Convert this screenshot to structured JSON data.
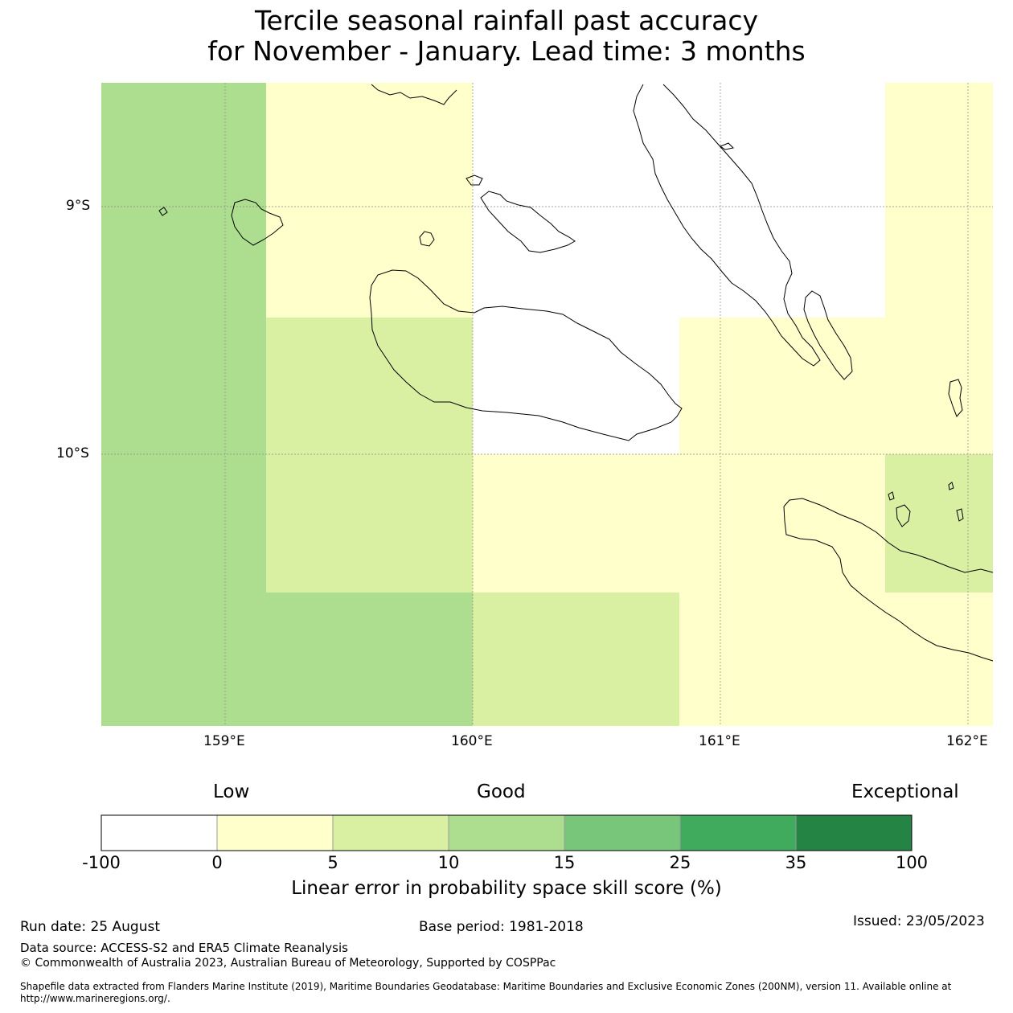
{
  "title": {
    "line1": "Tercile seasonal rainfall past accuracy",
    "line2": "for November - January. Lead time: 3 months"
  },
  "map": {
    "lat_labels": [
      "9°S",
      "10°S"
    ],
    "lon_labels": [
      "159°E",
      "160°E",
      "161°E",
      "162°E"
    ],
    "category_colors": {
      "neg_0": "#ffffff",
      "0_5": "#ffffcc",
      "5_10": "#d9f0a3",
      "10_15": "#addd8e",
      "15_25": "#78c679",
      "25_35": "#41ab5d",
      "35_100": "#238443"
    },
    "cells": [
      [
        "10_15",
        "0_5",
        "neg_0",
        "neg_0",
        "0_5"
      ],
      [
        "10_15",
        "5_10",
        "neg_0",
        "0_5",
        "0_5"
      ],
      [
        "10_15",
        "5_10",
        "0_5",
        "0_5",
        "5_10"
      ],
      [
        "10_15",
        "10_15",
        "5_10",
        "0_5",
        "0_5"
      ]
    ]
  },
  "colorbar": {
    "words": {
      "low": "Low",
      "good": "Good",
      "exceptional": "Exceptional"
    },
    "ticks": [
      "-100",
      "0",
      "5",
      "10",
      "15",
      "25",
      "35",
      "100"
    ],
    "colors": [
      "#ffffff",
      "#ffffcc",
      "#d9f0a3",
      "#addd8e",
      "#78c679",
      "#41ab5d",
      "#238443"
    ],
    "label": "Linear error in probability space skill score (%)"
  },
  "footer": {
    "run_date": "Run date: 25 August",
    "base_period": "Base period: 1981-2018",
    "issued": "Issued: 23/05/2023",
    "data_source": "Data source: ACCESS-S2 and ERA5 Climate Reanalysis",
    "copyright": "© Commonwealth of Australia 2023, Australian Bureau of Meteorology, Supported by COSPPac",
    "shapefile": "Shapefile data extracted from Flanders Marine Institute (2019), Maritime Boundaries Geodatabase: Maritime Boundaries and Exclusive Economic Zones (200NM), version 11. Available online at http://www.marineregions.org/."
  }
}
